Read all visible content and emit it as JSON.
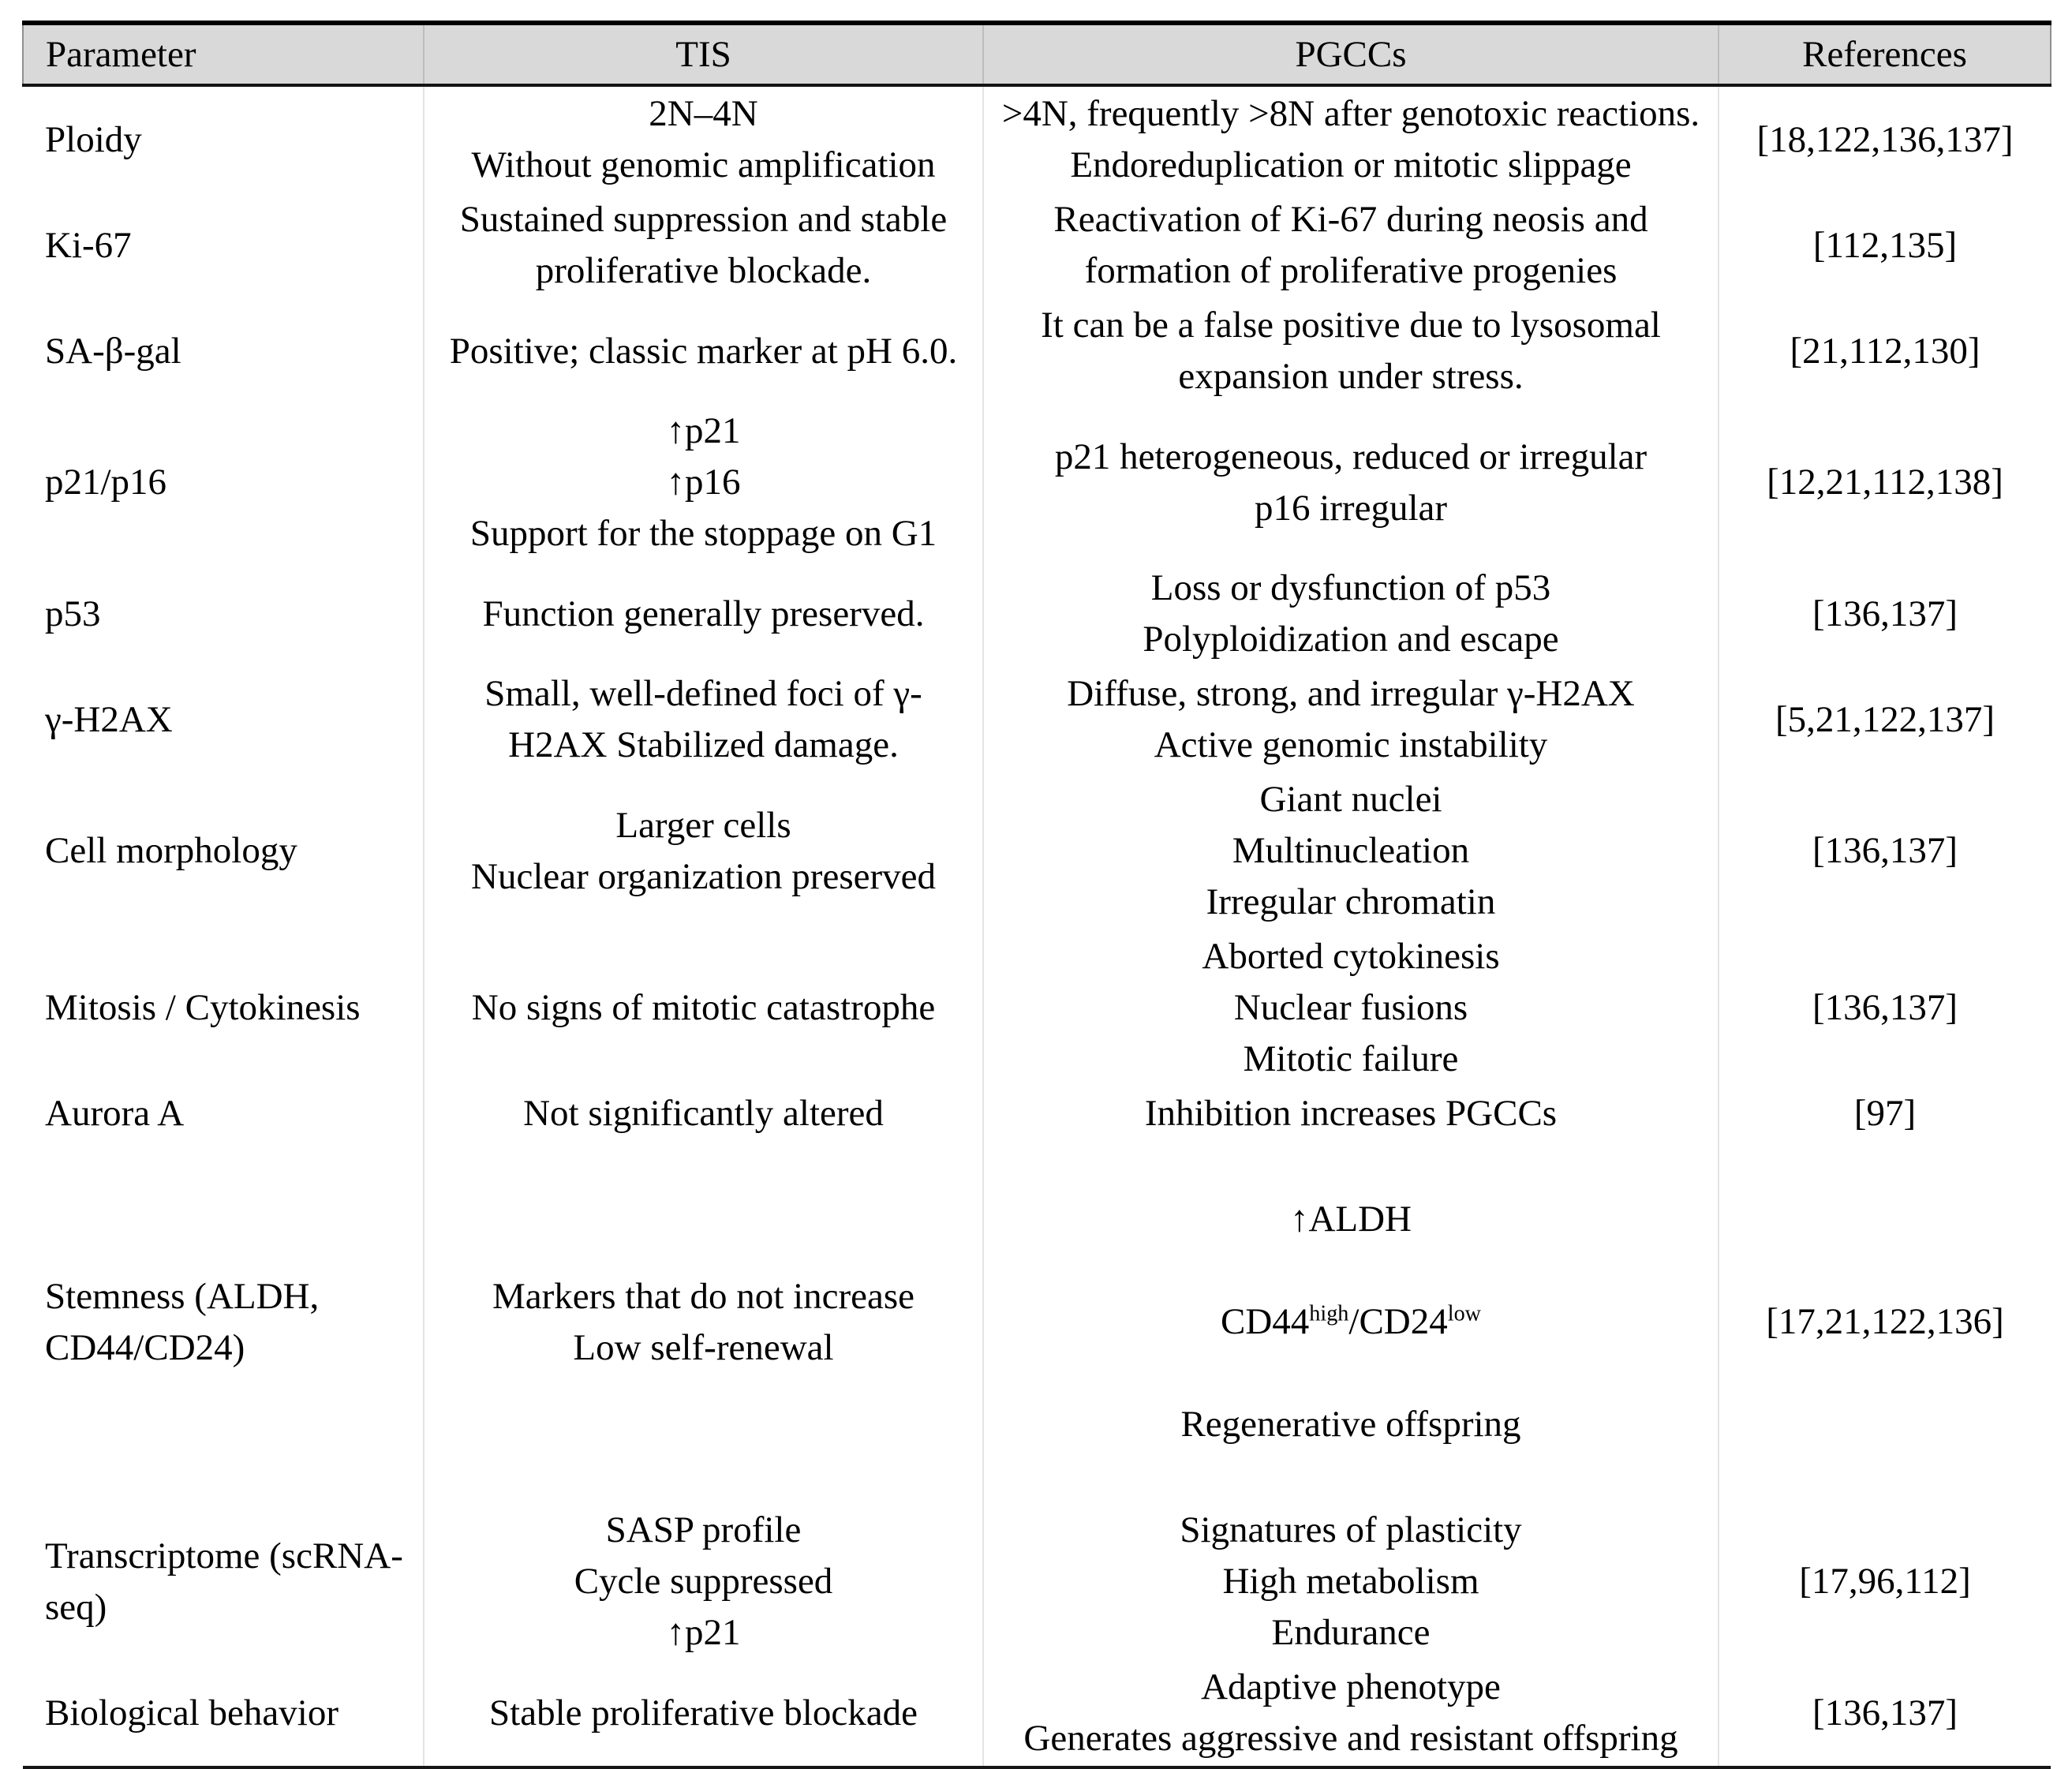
{
  "colors": {
    "header_background": "#d9d9d9",
    "border": "#000000",
    "text": "#000000"
  },
  "table": {
    "header": {
      "parameter": "Parameter",
      "tis": "TIS",
      "pgccs": "PGCCs",
      "references": "References"
    },
    "rows": [
      {
        "parameter": "Ploidy",
        "tis": [
          "2N–4N",
          "Without genomic amplification"
        ],
        "pgccs": [
          ">4N, frequently >8N after genotoxic reactions.",
          "Endoreduplication or mitotic slippage"
        ],
        "references": "[18,122,136,137]"
      },
      {
        "parameter": "Ki-67",
        "tis": [
          "Sustained suppression and stable proliferative blockade."
        ],
        "pgccs": [
          "Reactivation of Ki-67 during neosis and formation of proliferative progenies"
        ],
        "references": "[112,135]"
      },
      {
        "parameter": "SA-β-gal",
        "tis": [
          "Positive; classic marker at pH 6.0."
        ],
        "pgccs": [
          "It can be a false positive due to lysosomal expansion under stress."
        ],
        "references": "[21,112,130]"
      },
      {
        "parameter": "p21/p16",
        "tis": [
          "↑p21",
          "↑p16",
          "Support for the stoppage on G1"
        ],
        "pgccs": [
          "p21 heterogeneous, reduced or irregular",
          "p16 irregular"
        ],
        "references": "[12,21,112,138]"
      },
      {
        "parameter": "p53",
        "tis": [
          "Function generally preserved."
        ],
        "pgccs": [
          "Loss or dysfunction of p53",
          "Polyploidization and escape"
        ],
        "references": "[136,137]"
      },
      {
        "parameter": "γ-H2AX",
        "tis": [
          "Small, well-defined foci of γ-H2AX Stabilized damage."
        ],
        "pgccs": [
          "Diffuse, strong, and irregular γ-H2AX",
          "Active genomic instability"
        ],
        "references": "[5,21,122,137]"
      },
      {
        "parameter": "Cell morphology",
        "tis": [
          "Larger cells",
          "Nuclear organization preserved"
        ],
        "pgccs": [
          "Giant nuclei",
          "Multinucleation",
          "Irregular chromatin"
        ],
        "references": "[136,137]"
      },
      {
        "parameter": "Mitosis / Cytokinesis",
        "tis": [
          "No signs of mitotic catastrophe"
        ],
        "pgccs": [
          "Aborted cytokinesis",
          "Nuclear fusions",
          "Mitotic failure"
        ],
        "references": "[136,137]"
      },
      {
        "parameter": "Aurora A",
        "tis": [
          "Not significantly altered"
        ],
        "pgccs": [
          "Inhibition increases PGCCs"
        ],
        "references": "[97]"
      },
      {
        "parameter": "Stemness (ALDH, CD44/CD24)",
        "tis": [
          "Markers that do not increase",
          "Low self-renewal"
        ],
        "pgccs": {
          "line1": "↑ALDH",
          "cd_marker": {
            "cd44": "CD44",
            "cd44_level": "high",
            "separator": "/",
            "cd24": "CD24",
            "cd24_level": "low"
          },
          "line3": "Regenerative offspring"
        },
        "references": "[17,21,122,136]"
      },
      {
        "parameter": "Transcriptome (scRNA-seq)",
        "tis": [
          "SASP profile",
          "Cycle suppressed",
          "↑p21"
        ],
        "pgccs": [
          "Signatures of plasticity",
          "High metabolism",
          "Endurance"
        ],
        "references": "[17,96,112]"
      },
      {
        "parameter": "Biological behavior",
        "tis": [
          "Stable proliferative blockade"
        ],
        "pgccs": [
          "Adaptive phenotype",
          "Generates aggressive and resistant offspring"
        ],
        "references": "[136,137]"
      }
    ]
  }
}
